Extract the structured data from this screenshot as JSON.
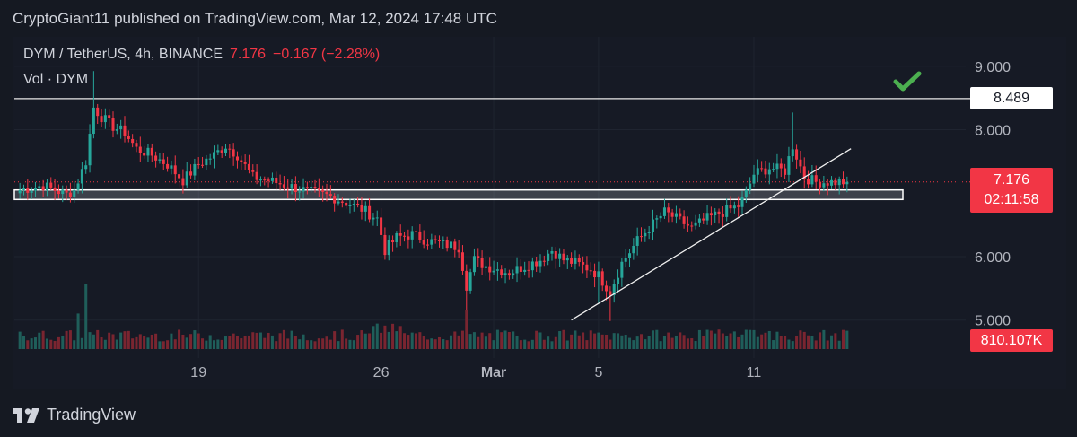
{
  "header": {
    "published_text": "CryptoGiant11 published on TradingView.com, Mar 12, 2024 17:48 UTC"
  },
  "legend": {
    "pair": "DYM / TetherUS, 4h, BINANCE",
    "last": "7.176",
    "change": "−0.167 (−2.28%)",
    "volume_label": "Vol · DYM"
  },
  "tags": {
    "level": "8.489",
    "last_price": "7.176",
    "countdown": "02:11:58",
    "volume": "810.107K"
  },
  "footer": {
    "brand": "TradingView"
  },
  "colors": {
    "background": "#161a25",
    "up": "#26a69a",
    "down": "#f23645",
    "up_volume": "#1f5e5a",
    "down_volume": "#7a2530",
    "check": "#4caf50"
  },
  "icons": {
    "confirm": "checkmark-icon",
    "brand": "tradingview-logo-icon"
  },
  "chart_data": {
    "type": "candlestick",
    "symbol": "DYM / TetherUS",
    "interval": "4h",
    "exchange": "BINANCE",
    "x_tick_labels": [
      "19",
      "26",
      "Mar",
      "5",
      "11"
    ],
    "y_tick_labels": [
      "9.000",
      "8.000",
      "6.000",
      "5.000"
    ],
    "ylim": [
      4.6,
      9.35
    ],
    "bars": 214,
    "tick_bar_index": {
      "19": 46,
      "26": 93,
      "Mar": 122,
      "5": 149,
      "11": 189
    },
    "close_path": [
      [
        0,
        7.05
      ],
      [
        6,
        7.12
      ],
      [
        12,
        6.98
      ],
      [
        14,
        7.05
      ],
      [
        17,
        7.5
      ],
      [
        19,
        8.35
      ],
      [
        21,
        8.2
      ],
      [
        24,
        8.05
      ],
      [
        27,
        7.95
      ],
      [
        30,
        7.7
      ],
      [
        34,
        7.6
      ],
      [
        38,
        7.45
      ],
      [
        42,
        7.2
      ],
      [
        46,
        7.45
      ],
      [
        50,
        7.6
      ],
      [
        53,
        7.75
      ],
      [
        56,
        7.6
      ],
      [
        60,
        7.25
      ],
      [
        64,
        7.2
      ],
      [
        70,
        7.1
      ],
      [
        76,
        7.0
      ],
      [
        80,
        6.95
      ],
      [
        84,
        6.85
      ],
      [
        88,
        6.75
      ],
      [
        92,
        6.6
      ],
      [
        94,
        6.1
      ],
      [
        97,
        6.3
      ],
      [
        101,
        6.35
      ],
      [
        105,
        6.25
      ],
      [
        109,
        6.2
      ],
      [
        113,
        6.15
      ],
      [
        115,
        5.55
      ],
      [
        117,
        5.95
      ],
      [
        120,
        5.85
      ],
      [
        123,
        5.8
      ],
      [
        126,
        5.75
      ],
      [
        130,
        5.85
      ],
      [
        134,
        5.95
      ],
      [
        137,
        6.1
      ],
      [
        140,
        5.95
      ],
      [
        143,
        5.9
      ],
      [
        147,
        5.8
      ],
      [
        149,
        5.7
      ],
      [
        152,
        5.45
      ],
      [
        155,
        5.9
      ],
      [
        159,
        6.25
      ],
      [
        162,
        6.45
      ],
      [
        166,
        6.7
      ],
      [
        169,
        6.6
      ],
      [
        173,
        6.45
      ],
      [
        177,
        6.6
      ],
      [
        181,
        6.7
      ],
      [
        185,
        6.8
      ],
      [
        187,
        7.0
      ],
      [
        189,
        7.3
      ],
      [
        193,
        7.4
      ],
      [
        197,
        7.35
      ],
      [
        199,
        7.75
      ],
      [
        202,
        7.25
      ],
      [
        205,
        7.176
      ]
    ],
    "level_lines": [
      {
        "price": 8.489,
        "label": "8.489"
      }
    ],
    "last_price": 7.176,
    "support_zone": [
      6.9,
      7.05
    ],
    "trendline": [
      [
        142,
        5.0
      ],
      [
        214,
        7.7
      ]
    ],
    "volume_tag": "810.107K"
  }
}
